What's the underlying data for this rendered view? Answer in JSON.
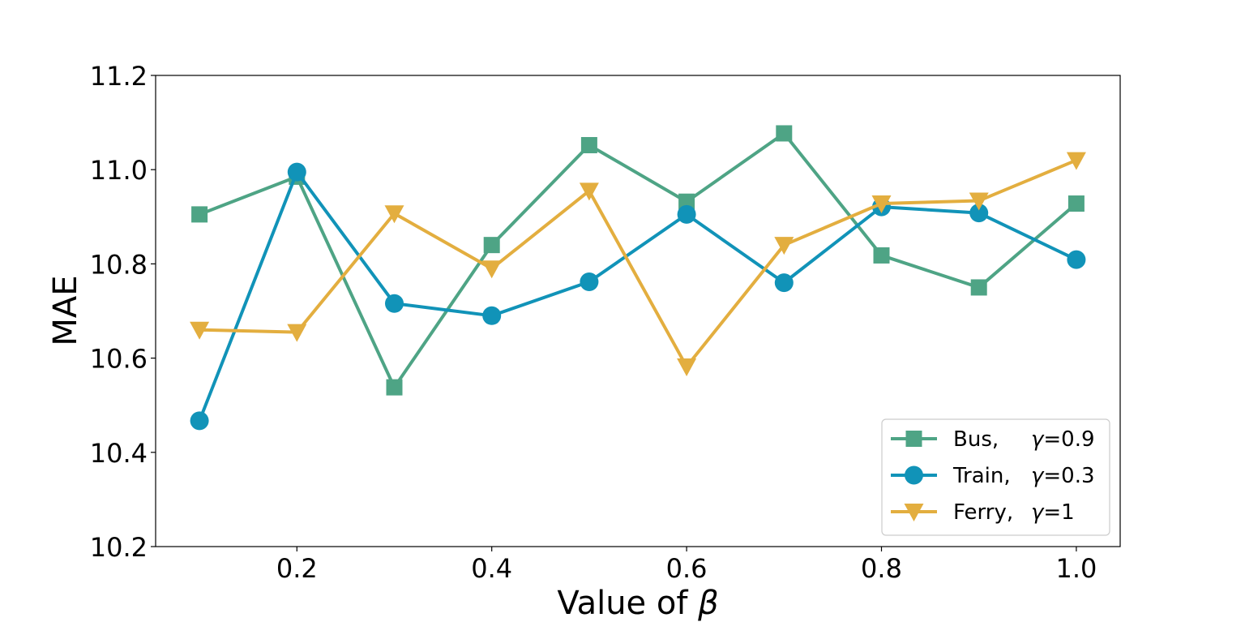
{
  "chart_data": {
    "type": "line",
    "xlabel_prefix": "Value of ",
    "xlabel_symbol": "β",
    "ylabel": "MAE",
    "xlim": [
      0.055,
      1.045
    ],
    "ylim": [
      10.2,
      11.2
    ],
    "xticks": [
      0.2,
      0.4,
      0.6,
      0.8,
      1.0
    ],
    "xtick_labels": [
      "0.2",
      "0.4",
      "0.6",
      "0.8",
      "1.0"
    ],
    "yticks": [
      10.2,
      10.4,
      10.6,
      10.8,
      11.0,
      11.2
    ],
    "ytick_labels": [
      "10.2",
      "10.4",
      "10.6",
      "10.8",
      "11.0",
      "11.2"
    ],
    "grid": false,
    "legend_position": "lower-right",
    "x": [
      0.1,
      0.2,
      0.3,
      0.4,
      0.5,
      0.6,
      0.7,
      0.8,
      0.9,
      1.0
    ],
    "series": [
      {
        "name": "Bus,",
        "param": "γ=0.9",
        "color": "#4ea485",
        "marker": "square",
        "values": [
          10.905,
          10.985,
          10.538,
          10.84,
          11.052,
          10.932,
          11.077,
          10.818,
          10.75,
          10.928
        ]
      },
      {
        "name": "Train,",
        "param": "γ=0.3",
        "color": "#1193b8",
        "marker": "circle",
        "values": [
          10.467,
          10.995,
          10.716,
          10.69,
          10.762,
          10.905,
          10.76,
          10.921,
          10.908,
          10.809
        ]
      },
      {
        "name": "Ferry,",
        "param": "γ=1",
        "color": "#e3ae3f",
        "marker": "triangle-down",
        "values": [
          10.66,
          10.655,
          10.907,
          10.79,
          10.955,
          10.582,
          10.84,
          10.928,
          10.934,
          11.02
        ]
      }
    ]
  }
}
